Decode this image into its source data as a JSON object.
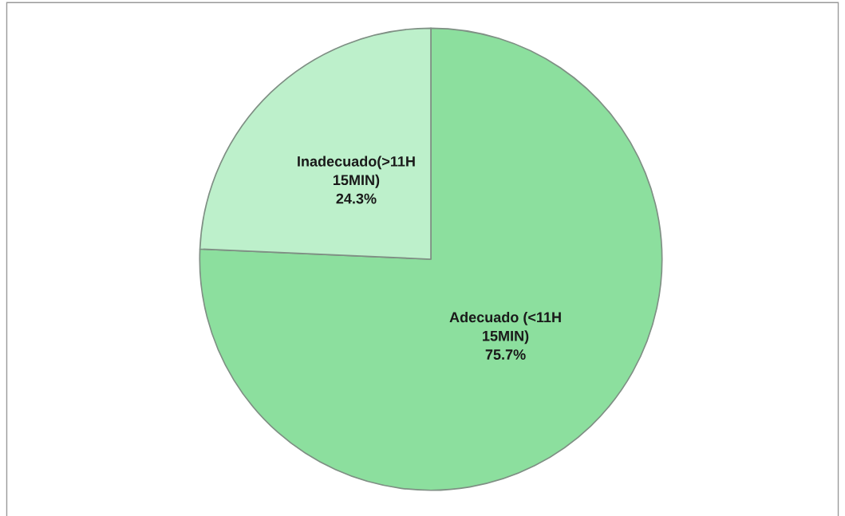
{
  "chart_data": {
    "type": "pie",
    "categories": [
      "Adecuado (<11H 15MIN)",
      "Inadecuado(>11H 15MIN)"
    ],
    "values": [
      75.7,
      24.3
    ],
    "value_labels": [
      "75.7%",
      "24.3%"
    ],
    "colors": [
      "#8cdf9e",
      "#bdf0cb"
    ],
    "legend": false
  }
}
